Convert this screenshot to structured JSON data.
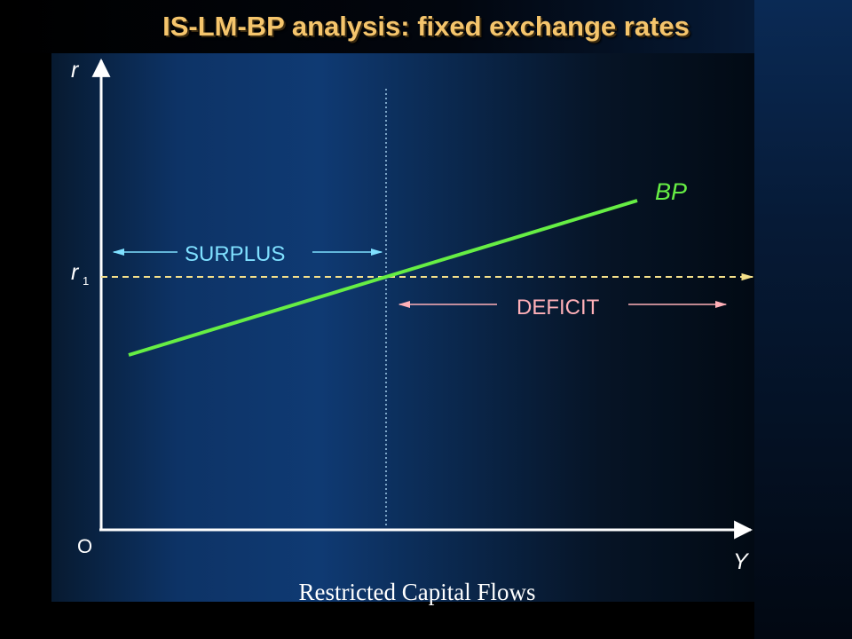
{
  "title": "IS-LM-BP analysis: fixed exchange rates",
  "caption": "Restricted Capital Flows",
  "axes": {
    "y_label": "r",
    "x_label": "Y",
    "origin_label": "O",
    "r1_label": "r",
    "r1_subscript": "1"
  },
  "curve": {
    "label": "BP",
    "color": "#66ee44"
  },
  "regions": {
    "surplus": {
      "label": "SURPLUS",
      "color": "#7fe0ff"
    },
    "deficit": {
      "label": "DEFICIT",
      "color": "#ffb0b8"
    }
  },
  "colors": {
    "title": "#f5c56c",
    "axis": "#ffffff",
    "dashed_line": "#f5e08a"
  }
}
